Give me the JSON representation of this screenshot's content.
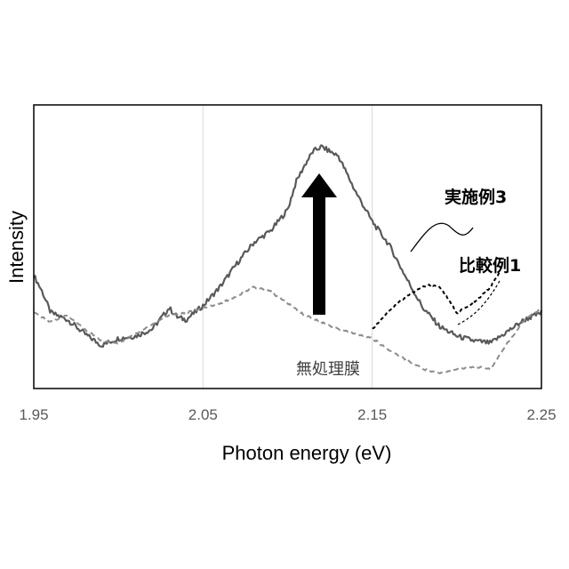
{
  "chart_data": {
    "type": "line",
    "title": "",
    "xlabel": "Photon energy (eV)",
    "ylabel": "Intensity",
    "xlim": [
      1.95,
      2.25
    ],
    "ylim": [
      0,
      1
    ],
    "x_ticks": [
      "1.95",
      "2.05",
      "2.15",
      "2.25"
    ],
    "grid": "vertical",
    "y_tick_labels": false,
    "series": [
      {
        "name": "実施例3",
        "color": "#595959",
        "style": "solid",
        "x": [
          1.95,
          1.955,
          1.96,
          1.97,
          1.98,
          1.99,
          2.0,
          2.01,
          2.02,
          2.03,
          2.035,
          2.04,
          2.05,
          2.06,
          2.07,
          2.08,
          2.09,
          2.1,
          2.105,
          2.11,
          2.115,
          2.12,
          2.13,
          2.14,
          2.15,
          2.16,
          2.17,
          2.18,
          2.19,
          2.2,
          2.21,
          2.22,
          2.23,
          2.24,
          2.25
        ],
        "y": [
          0.45,
          0.38,
          0.29,
          0.26,
          0.2,
          0.15,
          0.18,
          0.19,
          0.22,
          0.31,
          0.27,
          0.26,
          0.32,
          0.4,
          0.5,
          0.59,
          0.64,
          0.73,
          0.85,
          0.92,
          0.98,
          1.0,
          0.96,
          0.81,
          0.68,
          0.58,
          0.44,
          0.31,
          0.23,
          0.19,
          0.17,
          0.16,
          0.21,
          0.26,
          0.29
        ]
      },
      {
        "name": "比較例1",
        "color": "#000000",
        "style": "dashed",
        "x": [
          2.15,
          2.16,
          2.17,
          2.18,
          2.185,
          2.19,
          2.2,
          2.21,
          2.22,
          2.225
        ],
        "y": [
          0.22,
          0.3,
          0.36,
          0.4,
          0.41,
          0.4,
          0.29,
          0.33,
          0.4,
          0.46
        ]
      },
      {
        "name": "無処理膜",
        "color": "#8c8c8c",
        "style": "dashed",
        "x": [
          1.95,
          1.96,
          1.97,
          1.98,
          1.99,
          2.0,
          2.01,
          2.02,
          2.03,
          2.04,
          2.05,
          2.06,
          2.07,
          2.08,
          2.09,
          2.1,
          2.11,
          2.12,
          2.13,
          2.14,
          2.15,
          2.16,
          2.17,
          2.18,
          2.19,
          2.2,
          2.21,
          2.22,
          2.23,
          2.24,
          2.25
        ],
        "y": [
          0.29,
          0.25,
          0.28,
          0.22,
          0.17,
          0.16,
          0.2,
          0.24,
          0.28,
          0.29,
          0.31,
          0.33,
          0.36,
          0.4,
          0.38,
          0.33,
          0.28,
          0.25,
          0.22,
          0.2,
          0.18,
          0.13,
          0.09,
          0.05,
          0.03,
          0.05,
          0.06,
          0.05,
          0.16,
          0.26,
          0.31
        ]
      }
    ],
    "annotations": {
      "jitsu": "実施例3",
      "hikaku": "比較例1",
      "mushori": "無処理膜"
    }
  }
}
